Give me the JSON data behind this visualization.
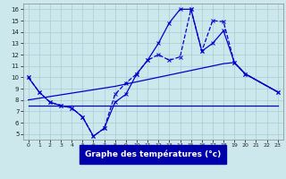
{
  "xlabel": "Graphe des températures (°c)",
  "bg_color": "#cce8ec",
  "grid_color": "#a8cdd4",
  "line_color": "#0000cc",
  "xlim": [
    -0.5,
    23.5
  ],
  "ylim": [
    4.5,
    16.5
  ],
  "yticks": [
    5,
    6,
    7,
    8,
    9,
    10,
    11,
    12,
    13,
    14,
    15,
    16
  ],
  "xticks": [
    0,
    1,
    2,
    3,
    4,
    5,
    6,
    7,
    8,
    9,
    10,
    11,
    12,
    13,
    14,
    15,
    16,
    17,
    18,
    19,
    20,
    21,
    22,
    23
  ],
  "line1_x": [
    0,
    1,
    2,
    3,
    4,
    5,
    6,
    7,
    8,
    9,
    10,
    11,
    12,
    13,
    14,
    15,
    16,
    17,
    18,
    19,
    20,
    23
  ],
  "line1_y": [
    10.0,
    8.7,
    7.8,
    7.5,
    7.3,
    6.5,
    4.8,
    5.5,
    7.8,
    8.5,
    10.3,
    11.5,
    13.0,
    14.8,
    16.0,
    16.0,
    12.3,
    13.0,
    14.1,
    11.3,
    10.3,
    8.7
  ],
  "line2_x": [
    0,
    1,
    2,
    3,
    4,
    5,
    6,
    7,
    8,
    9,
    10,
    11,
    12,
    13,
    14,
    15,
    16,
    17,
    18,
    19,
    20,
    23
  ],
  "line2_y": [
    10.0,
    8.7,
    7.8,
    7.5,
    7.3,
    6.5,
    4.8,
    5.5,
    8.5,
    9.5,
    10.3,
    11.5,
    12.0,
    11.5,
    11.8,
    16.0,
    12.3,
    15.0,
    14.9,
    11.3,
    10.3,
    8.7
  ],
  "line3_x": [
    0,
    20,
    23
  ],
  "line3_y": [
    7.5,
    7.5,
    7.5
  ],
  "line4_x": [
    0,
    1,
    2,
    3,
    4,
    5,
    6,
    7,
    8,
    9,
    10,
    11,
    12,
    13,
    14,
    15,
    16,
    17,
    18,
    19,
    20,
    23
  ],
  "line4_y": [
    8.0,
    8.15,
    8.3,
    8.45,
    8.6,
    8.75,
    8.9,
    9.05,
    9.2,
    9.4,
    9.6,
    9.8,
    10.0,
    10.2,
    10.4,
    10.6,
    10.8,
    11.0,
    11.2,
    11.3,
    10.3,
    8.7
  ]
}
